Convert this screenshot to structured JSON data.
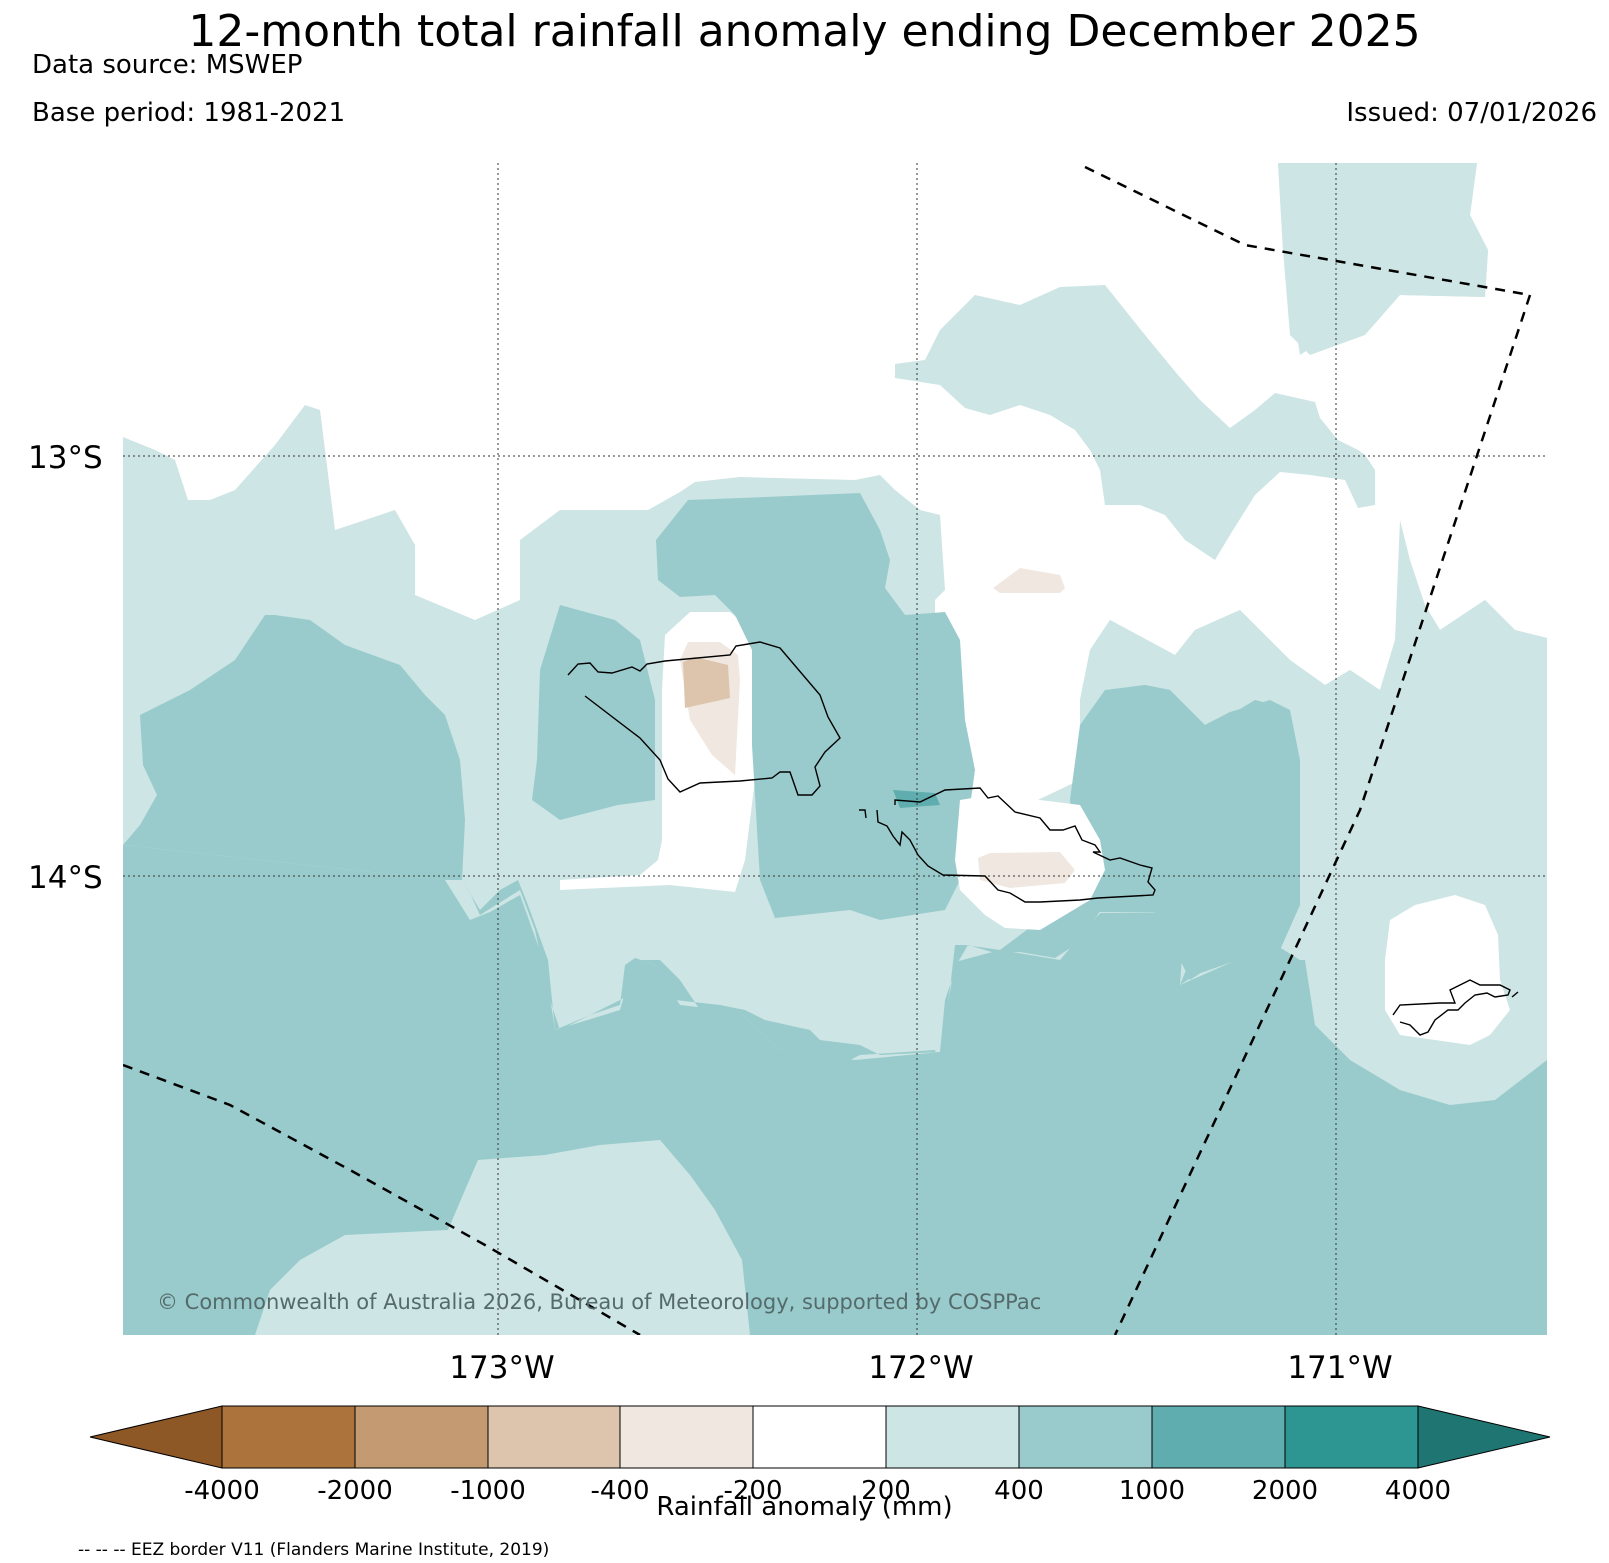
{
  "title": "12-month total rainfall anomaly ending December 2025",
  "data_source": "Data source: MSWEP",
  "base_period": "Base period: 1981-2021",
  "issued": "Issued: 07/01/2026",
  "copyright": "© Commonwealth of Australia 2026, Bureau of Meteorology, supported by COSPPac",
  "lat_labels": [
    "13°S",
    "14°S"
  ],
  "lon_labels": [
    "173°W",
    "172°W",
    "171°W"
  ],
  "colorbar": {
    "title": "Rainfall anomaly (mm)",
    "ticks": [
      "-4000",
      "-2000",
      "-1000",
      "-400",
      "-200",
      "200",
      "400",
      "1000",
      "2000",
      "4000"
    ],
    "colors": {
      "extend_low": "#8e5726",
      "c1": "#ad733d",
      "c2": "#c39a72",
      "c3": "#dcc4ad",
      "c4": "#f0e8e0",
      "c5": "#ffffff",
      "c6": "#cde5e4",
      "c7": "#9acbcc",
      "c8": "#5fadae",
      "c9": "#2e9692",
      "extend_high": "#1f7571"
    }
  },
  "eez_note": "-- -- -- EEZ border V11 (Flanders Marine Institute, 2019)"
}
